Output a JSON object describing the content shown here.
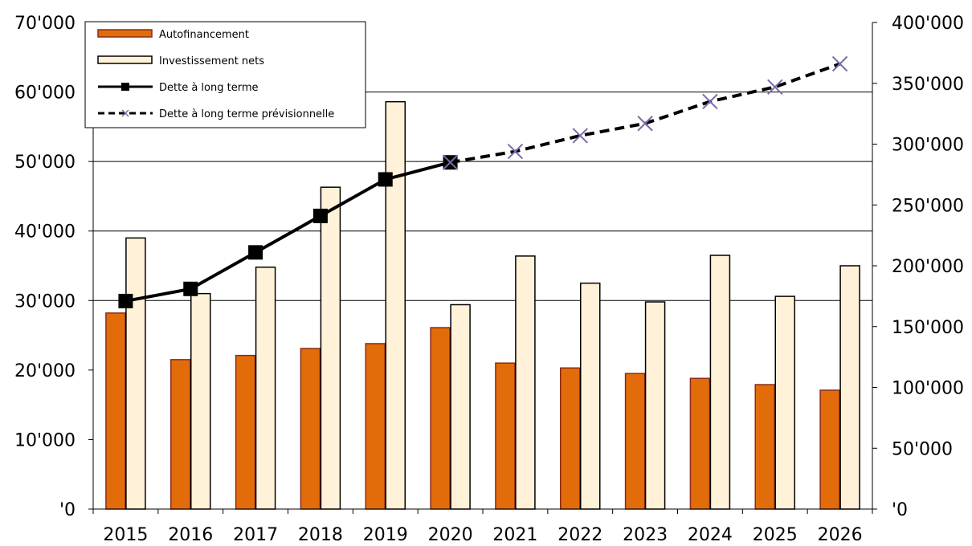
{
  "chart_data": {
    "type": "bar",
    "categories": [
      "2015",
      "2016",
      "2017",
      "2018",
      "2019",
      "2020",
      "2021",
      "2022",
      "2023",
      "2024",
      "2025",
      "2026"
    ],
    "series": [
      {
        "name": "Autofinancement",
        "type": "bar",
        "axis": "left",
        "color": "#E36C0A",
        "values": [
          28200,
          21500,
          22100,
          23100,
          23800,
          26100,
          21000,
          20300,
          19500,
          18800,
          17900,
          17100
        ]
      },
      {
        "name": "Investissement nets",
        "type": "bar",
        "axis": "left",
        "color": "#FFF2D9",
        "values": [
          39000,
          31000,
          34800,
          46300,
          58600,
          29400,
          36400,
          32500,
          29800,
          36500,
          30600,
          35000
        ]
      },
      {
        "name": "Dette à long terme",
        "type": "line",
        "axis": "right",
        "style": "solid-square",
        "x": [
          "2015",
          "2016",
          "2017",
          "2018",
          "2019",
          "2020"
        ],
        "values": [
          171000,
          181000,
          211000,
          241000,
          271000,
          285000
        ]
      },
      {
        "name": "Dette à long terme prévisionnelle",
        "type": "line",
        "axis": "right",
        "style": "dashed-cross",
        "x": [
          "2020",
          "2021",
          "2022",
          "2023",
          "2024",
          "2025",
          "2026"
        ],
        "values": [
          285000,
          294000,
          307000,
          317000,
          335000,
          347000,
          366000
        ]
      }
    ],
    "y_left": {
      "ylim": [
        0,
        70000
      ],
      "ticks": [
        "'0",
        "10'000",
        "20'000",
        "30'000",
        "40'000",
        "50'000",
        "60'000",
        "70'000"
      ]
    },
    "y_right": {
      "ylim": [
        0,
        400000
      ],
      "ticks": [
        "'0",
        "50'000",
        "100'000",
        "150'000",
        "200'000",
        "250'000",
        "300'000",
        "350'000",
        "400'000"
      ]
    },
    "gridlines": [
      30000,
      40000,
      50000,
      60000
    ],
    "legend_position": "top-left"
  }
}
